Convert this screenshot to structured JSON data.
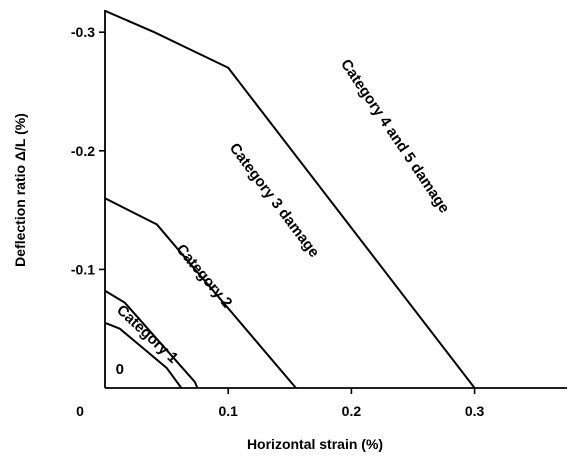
{
  "chart_data": {
    "type": "line",
    "xlabel": "Horizontal strain (%)",
    "ylabel": "Deflection ratio Δ/L (%)",
    "xlim": [
      0,
      0.37
    ],
    "ylim": [
      0,
      -0.325
    ],
    "x_ticks": [
      {
        "value": 0.1,
        "label": "0.1"
      },
      {
        "value": 0.2,
        "label": "0.2"
      },
      {
        "value": 0.3,
        "label": "0.3"
      }
    ],
    "y_ticks": [
      {
        "value": -0.1,
        "label": "-0.1"
      },
      {
        "value": -0.2,
        "label": "-0.2"
      },
      {
        "value": -0.3,
        "label": "-0.3"
      }
    ],
    "origin_label": "0",
    "grid": false,
    "series": [
      {
        "x": [
          0,
          0.012,
          0.05,
          0.062
        ],
        "y": [
          -0.055,
          -0.05,
          -0.017,
          0
        ]
      },
      {
        "x": [
          0,
          0.016,
          0.073,
          0.075
        ],
        "y": [
          -0.082,
          -0.072,
          -0.005,
          0
        ]
      },
      {
        "x": [
          0,
          0.042,
          0.155
        ],
        "y": [
          -0.16,
          -0.138,
          0
        ]
      },
      {
        "x": [
          0,
          0.04,
          0.07,
          0.1,
          0.3
        ],
        "y": [
          -0.318,
          -0.3,
          -0.285,
          -0.27,
          0
        ]
      }
    ],
    "annotations": [
      {
        "text": "0",
        "x": 0.012,
        "y": -0.015,
        "angle": 0
      },
      {
        "text": "Category 1",
        "x": 0.034,
        "y": -0.045,
        "angle": 43
      },
      {
        "text": "Category 2",
        "x": 0.08,
        "y": -0.094,
        "angle": 50
      },
      {
        "text": "Category 3 damage",
        "x": 0.137,
        "y": -0.158,
        "angle": 53
      },
      {
        "text": "Category 4 and 5 damage",
        "x": 0.235,
        "y": -0.212,
        "angle": 56
      }
    ]
  }
}
